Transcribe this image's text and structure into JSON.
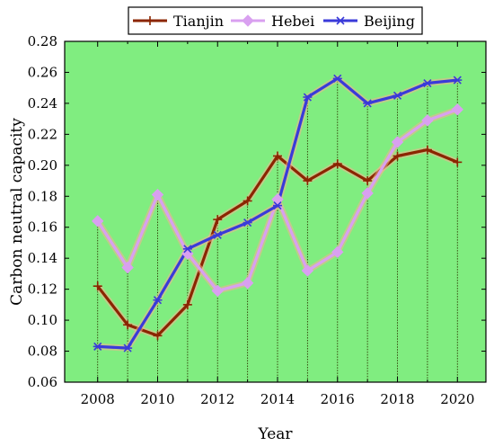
{
  "chart_data": {
    "type": "line",
    "title": "",
    "xlabel": "Year",
    "ylabel": "Carbon neutral capacity",
    "x": [
      2008,
      2009,
      2010,
      2011,
      2012,
      2013,
      2014,
      2015,
      2016,
      2017,
      2018,
      2019,
      2020
    ],
    "xlim": [
      2006.9,
      2020.95
    ],
    "ylim": [
      0.06,
      0.28
    ],
    "xticks": [
      2008,
      2010,
      2012,
      2014,
      2016,
      2018,
      2020
    ],
    "xtick_labels": [
      "2008",
      "2010",
      "2012",
      "2014",
      "2016",
      "2018",
      "2020"
    ],
    "yticks": [
      0.06,
      0.08,
      0.1,
      0.12,
      0.14,
      0.16,
      0.18,
      0.2,
      0.22,
      0.24,
      0.26,
      0.28
    ],
    "ytick_labels": [
      "0.06",
      "0.08",
      "0.10",
      "0.12",
      "0.14",
      "0.16",
      "0.18",
      "0.20",
      "0.22",
      "0.24",
      "0.26",
      "0.28"
    ],
    "grid": false,
    "drop_lines": true,
    "legend_position": "top",
    "background_color": "#80ed80",
    "series": [
      {
        "name": "Tianjin",
        "color": "#8b2500",
        "marker": "plus",
        "values": [
          0.122,
          0.097,
          0.09,
          0.11,
          0.165,
          0.177,
          0.206,
          0.19,
          0.201,
          0.19,
          0.206,
          0.21,
          0.202
        ]
      },
      {
        "name": "Hebei",
        "color": "#d9a0f0",
        "marker": "diamond",
        "values": [
          0.164,
          0.134,
          0.181,
          0.143,
          0.119,
          0.124,
          0.178,
          0.132,
          0.144,
          0.182,
          0.215,
          0.229,
          0.236
        ]
      },
      {
        "name": "Beijing",
        "color": "#3a3ad9",
        "marker": "asterisk",
        "values": [
          0.083,
          0.082,
          0.113,
          0.146,
          0.155,
          0.163,
          0.174,
          0.244,
          0.256,
          0.24,
          0.245,
          0.253,
          0.255
        ]
      }
    ]
  }
}
